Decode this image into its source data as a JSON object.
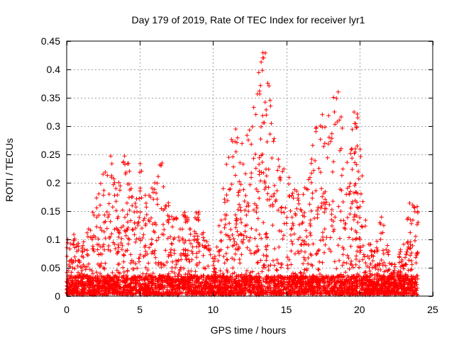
{
  "chart_data": {
    "type": "scatter",
    "title": "Day 179 of 2019, Rate Of TEC Index for receiver lyr1",
    "xlabel": "GPS time / hours",
    "ylabel": "ROTI / TECUs",
    "xlim": [
      0,
      25
    ],
    "ylim": [
      0,
      0.45
    ],
    "grid": true,
    "marker": "+",
    "series_color": "#ff0000",
    "x_ticks": [
      "0",
      "5",
      "10",
      "15",
      "20",
      "25"
    ],
    "y_ticks": [
      "0",
      "0.05",
      "0.1",
      "0.15",
      "0.2",
      "0.25",
      "0.3",
      "0.35",
      "0.4",
      "0.45"
    ],
    "series": [
      {
        "name": "ROTI",
        "envelope_hours": [
          0,
          0.5,
          1,
          1.5,
          2,
          2.5,
          3,
          3.5,
          4,
          4.5,
          5,
          5.5,
          6,
          6.5,
          7,
          7.5,
          8,
          8.5,
          9,
          9.5,
          10,
          10.5,
          11,
          11.5,
          12,
          12.5,
          13,
          13.5,
          14,
          14.5,
          15,
          15.5,
          16,
          16.5,
          17,
          17.5,
          18,
          18.5,
          19,
          19.5,
          20,
          20.5,
          21,
          21.5,
          22,
          22.5,
          23,
          23.5,
          24
        ],
        "envelope_roti": [
          0.1,
          0.11,
          0.09,
          0.12,
          0.17,
          0.22,
          0.26,
          0.2,
          0.26,
          0.22,
          0.24,
          0.17,
          0.22,
          0.24,
          0.16,
          0.14,
          0.15,
          0.14,
          0.16,
          0.1,
          0.08,
          0.16,
          0.26,
          0.3,
          0.29,
          0.36,
          0.38,
          0.45,
          0.35,
          0.24,
          0.22,
          0.2,
          0.17,
          0.22,
          0.31,
          0.33,
          0.35,
          0.38,
          0.26,
          0.35,
          0.31,
          0.1,
          0.09,
          0.15,
          0.08,
          0.06,
          0.1,
          0.18,
          0.16
        ],
        "baseline_roti": 0.02
      }
    ]
  }
}
